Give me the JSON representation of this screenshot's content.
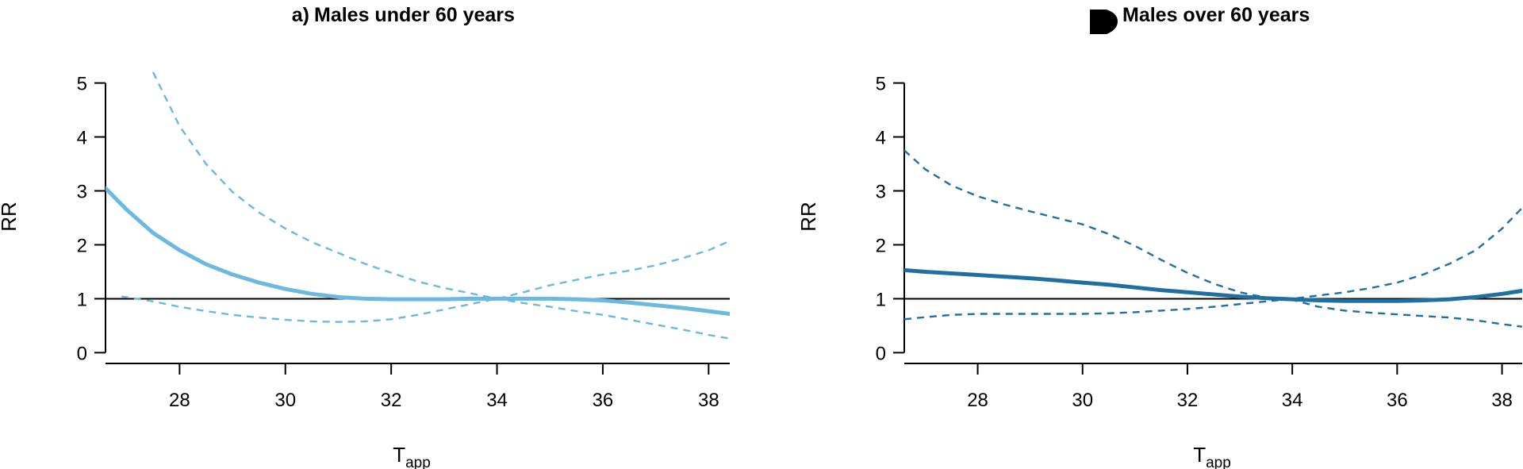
{
  "chart_data": [
    {
      "type": "line",
      "panel_label": "a)",
      "title": "Males under 60 years",
      "xlabel": "T",
      "xlabel_sub": "app",
      "ylabel": "RR",
      "xlim": [
        26.6,
        38.4
      ],
      "ylim": [
        -0.2,
        5.2
      ],
      "xticks": [
        28,
        30,
        32,
        34,
        36,
        38
      ],
      "yticks": [
        0,
        1,
        2,
        3,
        4,
        5
      ],
      "reference_line": 1,
      "color": "#6bb8e0",
      "series": [
        {
          "role": "estimate",
          "style": "solid",
          "x": [
            26.6,
            27.0,
            27.5,
            28.0,
            28.5,
            29.0,
            29.5,
            30.0,
            30.5,
            31.0,
            31.5,
            32.0,
            32.5,
            33.0,
            33.5,
            34.0,
            34.5,
            35.0,
            35.5,
            36.0,
            36.5,
            37.0,
            37.5,
            38.0,
            38.4
          ],
          "y": [
            3.05,
            2.65,
            2.22,
            1.9,
            1.64,
            1.45,
            1.3,
            1.18,
            1.09,
            1.03,
            1.0,
            0.99,
            0.99,
            0.99,
            1.0,
            1.0,
            1.0,
            1.0,
            0.99,
            0.97,
            0.93,
            0.88,
            0.83,
            0.77,
            0.72
          ]
        },
        {
          "role": "upper",
          "style": "dashed",
          "x": [
            27.5,
            28.0,
            28.5,
            29.0,
            29.5,
            30.0,
            30.5,
            31.0,
            31.5,
            32.0,
            32.5,
            33.0,
            33.5,
            34.0,
            34.5,
            35.0,
            35.5,
            36.0,
            36.5,
            37.0,
            37.5,
            38.0,
            38.4
          ],
          "y": [
            5.2,
            4.2,
            3.5,
            2.98,
            2.6,
            2.3,
            2.05,
            1.85,
            1.65,
            1.48,
            1.32,
            1.2,
            1.1,
            1.0,
            0.92,
            0.85,
            0.77,
            0.7,
            0.61,
            0.52,
            0.43,
            0.33,
            0.26
          ]
        },
        {
          "role": "lower",
          "style": "dashed",
          "x": [
            26.9,
            27.0,
            27.5,
            28.0,
            28.5,
            29.0,
            29.5,
            30.0,
            30.5,
            31.0,
            31.5,
            32.0,
            32.5,
            33.0,
            33.5,
            34.0,
            34.5,
            35.0,
            35.5,
            36.0,
            36.5,
            37.0,
            37.5,
            38.0,
            38.4
          ],
          "y": [
            1.04,
            1.03,
            0.95,
            0.85,
            0.77,
            0.7,
            0.65,
            0.61,
            0.58,
            0.57,
            0.58,
            0.62,
            0.7,
            0.8,
            0.9,
            1.0,
            1.12,
            1.25,
            1.35,
            1.45,
            1.52,
            1.62,
            1.75,
            1.9,
            2.07
          ]
        }
      ]
    },
    {
      "type": "line",
      "title": "Males over 60 years",
      "xlabel": "T",
      "xlabel_sub": "app",
      "ylabel": "RR",
      "xlim": [
        26.6,
        38.4
      ],
      "ylim": [
        -0.2,
        5.2
      ],
      "xticks": [
        28,
        30,
        32,
        34,
        36,
        38
      ],
      "yticks": [
        0,
        1,
        2,
        3,
        4,
        5
      ],
      "reference_line": 1,
      "color": "#1f6fa0",
      "series": [
        {
          "role": "estimate",
          "style": "solid",
          "x": [
            26.6,
            27.0,
            27.5,
            28.0,
            28.5,
            29.0,
            29.5,
            30.0,
            30.5,
            31.0,
            31.5,
            32.0,
            32.5,
            33.0,
            33.5,
            34.0,
            34.5,
            35.0,
            35.5,
            36.0,
            36.5,
            37.0,
            37.5,
            38.0,
            38.4
          ],
          "y": [
            1.53,
            1.5,
            1.47,
            1.44,
            1.41,
            1.38,
            1.34,
            1.3,
            1.26,
            1.21,
            1.16,
            1.12,
            1.08,
            1.04,
            1.01,
            0.99,
            0.97,
            0.96,
            0.96,
            0.96,
            0.97,
            0.99,
            1.03,
            1.09,
            1.15
          ]
        },
        {
          "role": "upper",
          "style": "dashed",
          "x": [
            26.6,
            27.0,
            27.5,
            28.0,
            28.5,
            29.0,
            29.5,
            30.0,
            30.5,
            31.0,
            31.5,
            32.0,
            32.5,
            33.0,
            33.5,
            34.0,
            34.5,
            35.0,
            35.5,
            36.0,
            36.5,
            37.0,
            37.5,
            38.0,
            38.4
          ],
          "y": [
            3.75,
            3.4,
            3.1,
            2.9,
            2.75,
            2.62,
            2.5,
            2.38,
            2.2,
            1.98,
            1.72,
            1.48,
            1.28,
            1.12,
            1.02,
            0.98,
            0.85,
            0.78,
            0.74,
            0.71,
            0.68,
            0.65,
            0.6,
            0.53,
            0.48
          ]
        },
        {
          "role": "lower",
          "style": "dashed",
          "x": [
            26.6,
            27.0,
            27.5,
            28.0,
            28.5,
            29.0,
            29.5,
            30.0,
            30.5,
            31.0,
            31.5,
            32.0,
            32.5,
            33.0,
            33.5,
            34.0,
            34.5,
            35.0,
            35.5,
            36.0,
            36.5,
            37.0,
            37.5,
            38.0,
            38.4
          ],
          "y": [
            0.62,
            0.66,
            0.7,
            0.72,
            0.72,
            0.72,
            0.72,
            0.72,
            0.73,
            0.75,
            0.78,
            0.81,
            0.85,
            0.9,
            0.95,
            1.0,
            1.06,
            1.12,
            1.2,
            1.3,
            1.45,
            1.65,
            1.9,
            2.3,
            2.7
          ]
        }
      ]
    }
  ]
}
